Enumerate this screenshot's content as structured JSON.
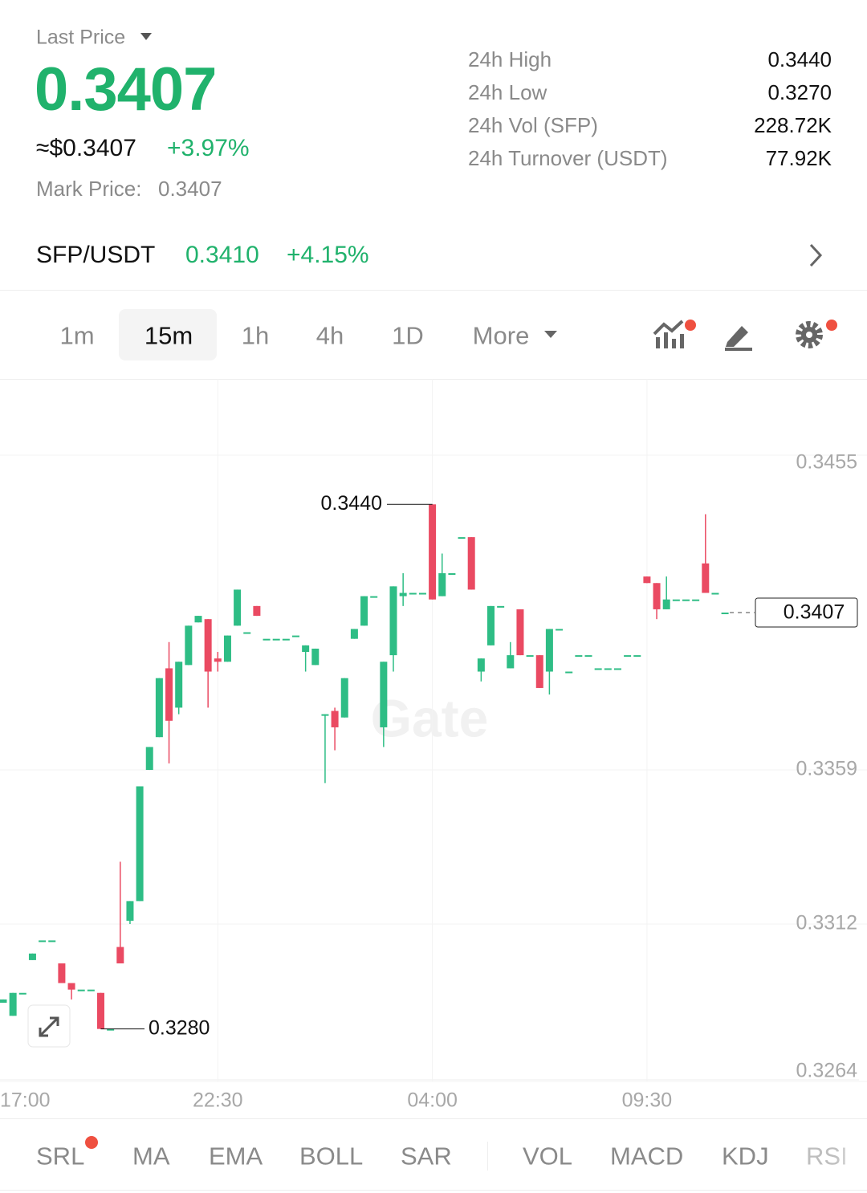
{
  "header": {
    "last_price_label": "Last Price",
    "last_price": "0.3407",
    "approx": "≈$0.3407",
    "change": "+3.97%",
    "mark_price_label": "Mark Price:",
    "mark_price": "0.3407"
  },
  "stats": [
    {
      "label": "24h High",
      "value": "0.3440"
    },
    {
      "label": "24h Low",
      "value": "0.3270"
    },
    {
      "label": "24h Vol (SFP)",
      "value": "228.72K"
    },
    {
      "label": "24h Turnover (USDT)",
      "value": "77.92K"
    }
  ],
  "pair": {
    "symbol": "SFP/USDT",
    "price": "0.3410",
    "change": "+4.15%"
  },
  "timeframes": [
    "1m",
    "15m",
    "1h",
    "4h",
    "1D",
    "More"
  ],
  "chart_data": {
    "type": "candlestick",
    "categories": [
      "17:00",
      null,
      null,
      null,
      null,
      null,
      null,
      null,
      null,
      null,
      null,
      null,
      null,
      null,
      null,
      null,
      null,
      null,
      null,
      null,
      null,
      null,
      "22:30",
      null,
      null,
      null,
      null,
      null,
      null,
      null,
      null,
      null,
      null,
      null,
      null,
      null,
      null,
      null,
      null,
      null,
      null,
      null,
      null,
      null,
      "04:00",
      null,
      null,
      null,
      null,
      null,
      null,
      null,
      null,
      null,
      null,
      null,
      null,
      null,
      null,
      null,
      null,
      null,
      null,
      null,
      null,
      null,
      "09:30",
      null,
      null,
      null,
      null,
      null,
      null,
      null,
      null
    ],
    "open": [
      0.3288,
      0.3284,
      0.3291,
      0.3301,
      0.3307,
      0.3307,
      0.33,
      0.3294,
      0.3292,
      0.3292,
      0.3291,
      0.328,
      0.3305,
      0.3313,
      0.3319,
      0.3359,
      0.3369,
      0.339,
      0.3378,
      0.3391,
      0.3404,
      0.3405,
      0.3393,
      0.3392,
      0.3403,
      0.3401,
      0.3409,
      0.3399,
      0.3399,
      0.3399,
      0.34,
      0.3395,
      0.3391,
      0.3376,
      0.3377,
      0.3375,
      0.3399,
      0.3403,
      0.3412,
      0.3372,
      0.3394,
      0.3412,
      0.3413,
      0.3413,
      0.344,
      0.3412,
      0.3419,
      0.343,
      0.343,
      0.3389,
      0.3397,
      0.3409,
      0.339,
      0.3408,
      0.3394,
      0.3394,
      0.3389,
      0.3402,
      0.3389,
      0.3394,
      0.3394,
      0.339,
      0.339,
      0.339,
      0.3394,
      0.3394,
      0.3418,
      0.3416,
      0.3408,
      0.3411,
      0.3411,
      0.3411,
      0.3422,
      0.3413,
      0.3407
    ],
    "high": [
      0.3289,
      0.3291,
      0.3291,
      0.3303,
      0.3307,
      0.3307,
      0.33,
      0.3294,
      0.3292,
      0.3292,
      0.3291,
      0.328,
      0.3331,
      0.3319,
      0.3354,
      0.3366,
      0.3387,
      0.3398,
      0.3392,
      0.3403,
      0.3406,
      0.3405,
      0.3395,
      0.34,
      0.3414,
      0.3401,
      0.3409,
      0.3399,
      0.3399,
      0.3399,
      0.34,
      0.3397,
      0.3396,
      0.3376,
      0.3378,
      0.3387,
      0.3402,
      0.3412,
      0.3412,
      0.3392,
      0.3415,
      0.3419,
      0.3413,
      0.3413,
      0.344,
      0.3425,
      0.3419,
      0.343,
      0.343,
      0.3393,
      0.3409,
      0.3409,
      0.3398,
      0.3408,
      0.3394,
      0.3394,
      0.3402,
      0.3402,
      0.3389,
      0.3394,
      0.3394,
      0.339,
      0.339,
      0.339,
      0.3394,
      0.3394,
      0.3418,
      0.3416,
      0.3418,
      0.3411,
      0.3411,
      0.3411,
      0.3437,
      0.3413,
      0.3407
    ],
    "low": [
      0.3288,
      0.3284,
      0.3291,
      0.3301,
      0.3307,
      0.3307,
      0.3294,
      0.3289,
      0.3292,
      0.3292,
      0.328,
      0.328,
      0.33,
      0.3312,
      0.3319,
      0.3359,
      0.3369,
      0.3361,
      0.3376,
      0.3391,
      0.3404,
      0.3378,
      0.3389,
      0.3392,
      0.3403,
      0.3401,
      0.3406,
      0.3399,
      0.3399,
      0.3399,
      0.34,
      0.3389,
      0.3391,
      0.3355,
      0.3365,
      0.3375,
      0.3399,
      0.3403,
      0.3412,
      0.3366,
      0.3389,
      0.3409,
      0.3413,
      0.3413,
      0.3411,
      0.3412,
      0.3419,
      0.343,
      0.3414,
      0.3386,
      0.3397,
      0.3409,
      0.339,
      0.3394,
      0.3394,
      0.3384,
      0.3382,
      0.3402,
      0.3389,
      0.3394,
      0.3394,
      0.339,
      0.339,
      0.339,
      0.3394,
      0.3394,
      0.3416,
      0.3405,
      0.3408,
      0.3411,
      0.3411,
      0.3411,
      0.3413,
      0.3413,
      0.3407
    ],
    "close": [
      0.3289,
      0.3291,
      0.3291,
      0.3303,
      0.3307,
      0.3307,
      0.3294,
      0.3292,
      0.3292,
      0.3292,
      0.328,
      0.328,
      0.33,
      0.3319,
      0.3354,
      0.3366,
      0.3387,
      0.3374,
      0.3392,
      0.3403,
      0.3406,
      0.3389,
      0.3392,
      0.34,
      0.3414,
      0.3401,
      0.3406,
      0.3399,
      0.3399,
      0.3399,
      0.34,
      0.3397,
      0.3396,
      0.3376,
      0.3372,
      0.3387,
      0.3402,
      0.3412,
      0.3412,
      0.3392,
      0.3415,
      0.3413,
      0.3413,
      0.3413,
      0.3411,
      0.3419,
      0.3419,
      0.343,
      0.3414,
      0.3393,
      0.3409,
      0.3409,
      0.3394,
      0.3394,
      0.3394,
      0.3384,
      0.3402,
      0.3402,
      0.3389,
      0.3394,
      0.3394,
      0.339,
      0.339,
      0.339,
      0.3394,
      0.3394,
      0.3416,
      0.3408,
      0.3411,
      0.3411,
      0.3411,
      0.3411,
      0.3413,
      0.3413,
      0.3407
    ],
    "up_color": "#2ebd85",
    "down_color": "#ea4a62",
    "ylim": [
      0.3264,
      0.3455
    ],
    "yticks": [
      0.3455,
      0.3359,
      0.3312,
      0.3264
    ],
    "grid": true,
    "high_marker": {
      "value": 0.344,
      "label": "0.3440"
    },
    "low_marker": {
      "value": 0.328,
      "label": "0.3280"
    },
    "last_price": 0.3407,
    "watermark": "Gate"
  },
  "indicators": [
    "SRL",
    "MA",
    "EMA",
    "BOLL",
    "SAR",
    "VOL",
    "MACD",
    "KDJ",
    "RSI"
  ]
}
